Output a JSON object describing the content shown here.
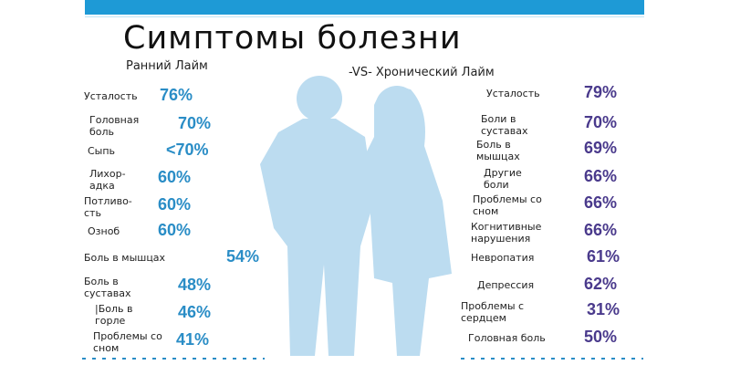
{
  "title": "Симптомы болезни",
  "early_label": "Ранний Лайм",
  "chronic_label": "-VS- Хронический Лайм",
  "colors": {
    "top_bar": "#1e9ad6",
    "early_percent": "#2a8dc6",
    "chronic_percent": "#4a3a8c",
    "silhouette": "#bcdcf0"
  },
  "early": [
    {
      "label": "Усталость",
      "value": "76%"
    },
    {
      "label": "Головная\nболь",
      "value": "70%"
    },
    {
      "label": "Сыпь",
      "value": "<70%"
    },
    {
      "label": "Лихор-\nадка",
      "value": "60%"
    },
    {
      "label": "Потливо-\nсть",
      "value": "60%"
    },
    {
      "label": "Озноб",
      "value": "60%"
    },
    {
      "label": "Боль в мышцах",
      "value": "54%"
    },
    {
      "label": "Боль в\nсуставах",
      "value": "48%"
    },
    {
      "label": "|Боль в\nгорле",
      "value": "46%"
    },
    {
      "label": "Проблемы со\nсном",
      "value": "41%"
    }
  ],
  "chronic": [
    {
      "label": "Усталость",
      "value": "79%"
    },
    {
      "label": "Боли в\nсуставах",
      "value": "70%"
    },
    {
      "label": "Боль в\nмышцах",
      "value": "69%"
    },
    {
      "label": "Другие\nболи",
      "value": "66%"
    },
    {
      "label": "Проблемы со\nсном",
      "value": "66%"
    },
    {
      "label": "Когнитивные\nнарушения",
      "value": "66%"
    },
    {
      "label": "Невропатия",
      "value": "61%"
    },
    {
      "label": "Депрессия",
      "value": "62%"
    },
    {
      "label": "Проблемы с\nсердцем",
      "value": "31%"
    },
    {
      "label": "Головная боль",
      "value": "50%"
    }
  ]
}
